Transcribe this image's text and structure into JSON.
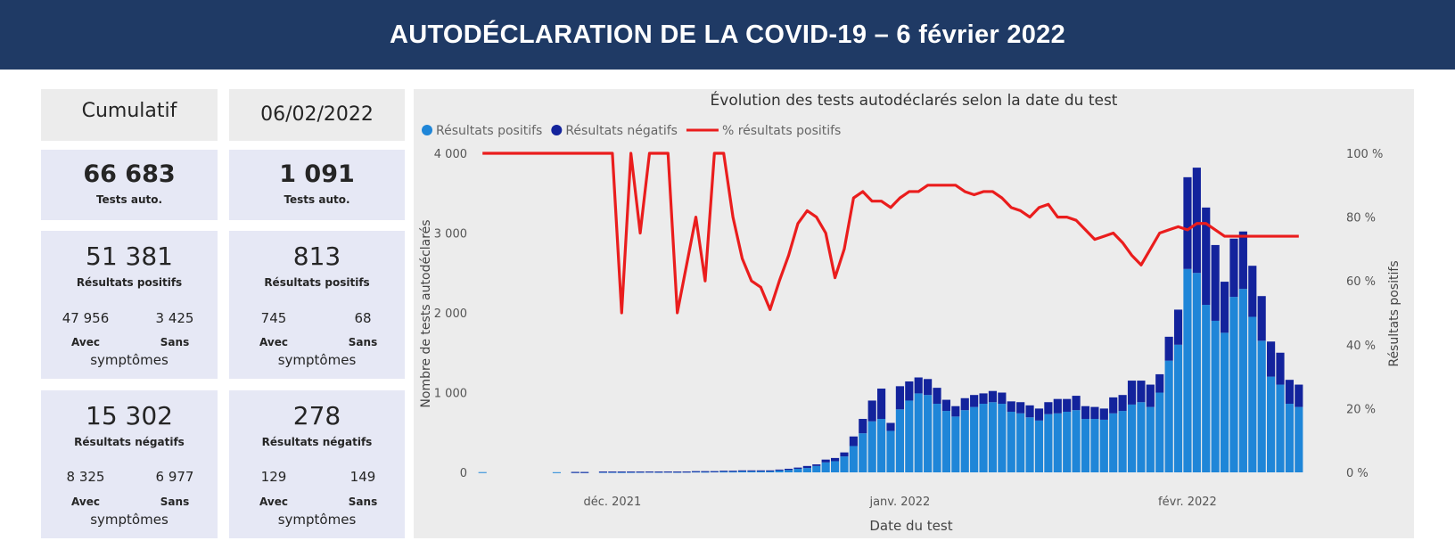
{
  "title": "AUTODÉCLARATION  DE LA COVID-19  – 6 février 2022",
  "cards": {
    "cumulative": {
      "header": "Cumulatif",
      "total": "66 683",
      "total_label": "Tests auto.",
      "positive": "51 381",
      "positive_label": "Résultats positifs",
      "positive_with": "47 956",
      "positive_without": "3 425",
      "negative": "15 302",
      "negative_label": "Résultats négatifs",
      "negative_with": "8 325",
      "negative_without": "6 977"
    },
    "daily": {
      "header": "06/02/2022",
      "total": "1 091",
      "total_label": "Tests auto.",
      "positive": "813",
      "positive_label": "Résultats positifs",
      "positive_with": "745",
      "positive_without": "68",
      "negative": "278",
      "negative_label": "Résultats négatifs",
      "negative_with": "129",
      "negative_without": "149"
    },
    "with_label": "Avec",
    "without_label": "Sans",
    "symptoms_label": "symptômes"
  },
  "chart_data": {
    "type": "bar",
    "title": "Évolution des tests autodéclarés selon la date du test",
    "xlabel": "Date du test",
    "ylabel": "Nombre de tests autodéclarés",
    "y2label": "Résultats positifs",
    "stacked": true,
    "ylim": [
      0,
      4000
    ],
    "y2lim": [
      0,
      100
    ],
    "yticks": [
      "0",
      "1 000",
      "2 000",
      "3 000",
      "4 000"
    ],
    "y2ticks": [
      "0 %",
      "20 %",
      "40 %",
      "60 %",
      "80 %",
      "100 %"
    ],
    "x_tick_labels": [
      "déc. 2021",
      "janv. 2022",
      "févr. 2022"
    ],
    "legend_position": "top-left",
    "colors": {
      "positive": "#1f86d8",
      "negative": "#13239c",
      "line": "#ea1d1d",
      "background": "#ececec",
      "axis_text": "#555555"
    },
    "series": [
      {
        "name": "Résultats positifs",
        "values": [
          3,
          0,
          0,
          0,
          0,
          0,
          0,
          0,
          2,
          0,
          3,
          3,
          0,
          5,
          5,
          4,
          5,
          6,
          8,
          6,
          8,
          6,
          8,
          10,
          8,
          12,
          10,
          10,
          15,
          14,
          15,
          16,
          24,
          30,
          45,
          55,
          80,
          125,
          140,
          200,
          330,
          490,
          640,
          670,
          520,
          790,
          900,
          990,
          970,
          860,
          770,
          700,
          780,
          820,
          860,
          880,
          860,
          760,
          740,
          690,
          650,
          730,
          740,
          760,
          780,
          670,
          670,
          660,
          740,
          770,
          850,
          880,
          820,
          1000,
          1400,
          1600,
          2550,
          2500,
          2100,
          1900,
          1750,
          2200,
          2300,
          1950,
          1650,
          1200,
          1100,
          860,
          820
        ]
      },
      {
        "name": "Résultats négatifs",
        "values": [
          0,
          0,
          0,
          0,
          0,
          0,
          0,
          0,
          0,
          0,
          2,
          1,
          0,
          5,
          5,
          6,
          5,
          4,
          2,
          4,
          2,
          4,
          2,
          5,
          7,
          3,
          10,
          10,
          10,
          11,
          10,
          9,
          11,
          15,
          15,
          25,
          20,
          35,
          40,
          50,
          120,
          180,
          260,
          380,
          100,
          290,
          240,
          200,
          200,
          200,
          140,
          130,
          150,
          150,
          130,
          140,
          140,
          130,
          140,
          150,
          150,
          150,
          180,
          160,
          180,
          160,
          150,
          140,
          200,
          200,
          300,
          270,
          280,
          230,
          300,
          440,
          1150,
          1320,
          1220,
          950,
          640,
          730,
          720,
          640,
          560,
          440,
          400,
          300,
          280
        ]
      },
      {
        "name": "% résultats positifs",
        "type": "line",
        "values": [
          100,
          100,
          100,
          100,
          100,
          100,
          100,
          100,
          100,
          100,
          100,
          100,
          100,
          100,
          100,
          50,
          100,
          75,
          100,
          100,
          100,
          50,
          65,
          80,
          60,
          100,
          100,
          80,
          67,
          60,
          58,
          51,
          60,
          68,
          78,
          82,
          80,
          75,
          61,
          70,
          86,
          88,
          85,
          85,
          83,
          86,
          88,
          88,
          90,
          90,
          90,
          90,
          88,
          87,
          88,
          88,
          86,
          83,
          82,
          80,
          83,
          84,
          80,
          80,
          79,
          76,
          73,
          74,
          75,
          72,
          68,
          65,
          70,
          75,
          76,
          77,
          76,
          78,
          78,
          76,
          74,
          74,
          74,
          74,
          74,
          74,
          74,
          74,
          74
        ]
      }
    ]
  }
}
